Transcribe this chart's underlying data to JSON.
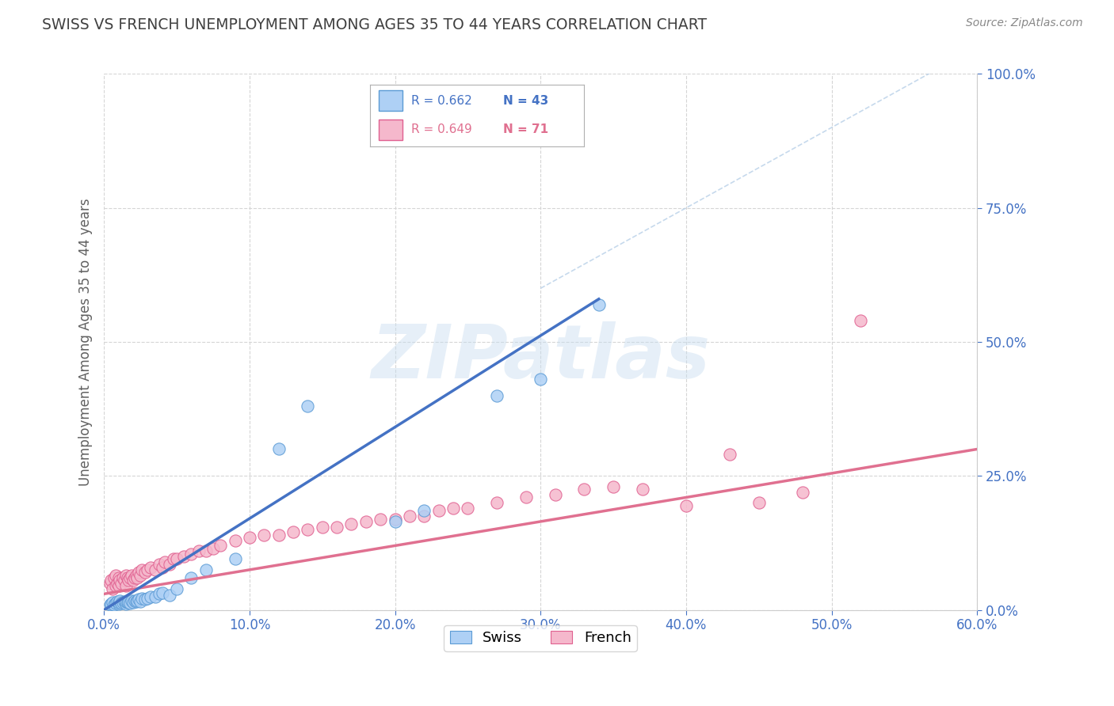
{
  "title": "SWISS VS FRENCH UNEMPLOYMENT AMONG AGES 35 TO 44 YEARS CORRELATION CHART",
  "source": "Source: ZipAtlas.com",
  "ylabel": "Unemployment Among Ages 35 to 44 years",
  "xlim": [
    0.0,
    0.6
  ],
  "ylim": [
    0.0,
    1.0
  ],
  "xticks": [
    0.0,
    0.1,
    0.2,
    0.3,
    0.4,
    0.5,
    0.6
  ],
  "yticks": [
    0.0,
    0.25,
    0.5,
    0.75,
    1.0
  ],
  "xticklabels": [
    "0.0%",
    "10.0%",
    "20.0%",
    "30.0%",
    "40.0%",
    "50.0%",
    "60.0%"
  ],
  "yticklabels": [
    "0.0%",
    "25.0%",
    "50.0%",
    "75.0%",
    "100.0%"
  ],
  "swiss_color": "#aed0f5",
  "french_color": "#f5b8cc",
  "swiss_edge_color": "#5b9bd5",
  "french_edge_color": "#e06090",
  "swiss_line_color": "#4472c4",
  "french_line_color": "#e07090",
  "ref_line_color": "#b8d0e8",
  "watermark_text": "ZIPatlas",
  "swiss_x": [
    0.004,
    0.005,
    0.006,
    0.007,
    0.008,
    0.009,
    0.01,
    0.01,
    0.011,
    0.012,
    0.013,
    0.014,
    0.015,
    0.015,
    0.016,
    0.017,
    0.018,
    0.019,
    0.02,
    0.021,
    0.022,
    0.023,
    0.024,
    0.025,
    0.026,
    0.028,
    0.03,
    0.032,
    0.035,
    0.038,
    0.04,
    0.045,
    0.05,
    0.06,
    0.07,
    0.09,
    0.12,
    0.14,
    0.2,
    0.22,
    0.27,
    0.3,
    0.34
  ],
  "swiss_y": [
    0.01,
    0.012,
    0.015,
    0.01,
    0.013,
    0.016,
    0.012,
    0.015,
    0.018,
    0.013,
    0.014,
    0.016,
    0.012,
    0.016,
    0.014,
    0.015,
    0.013,
    0.017,
    0.015,
    0.018,
    0.016,
    0.018,
    0.02,
    0.016,
    0.022,
    0.02,
    0.022,
    0.025,
    0.025,
    0.03,
    0.032,
    0.028,
    0.04,
    0.06,
    0.075,
    0.095,
    0.3,
    0.38,
    0.165,
    0.185,
    0.4,
    0.43,
    0.57
  ],
  "french_x": [
    0.004,
    0.005,
    0.006,
    0.007,
    0.008,
    0.008,
    0.009,
    0.01,
    0.01,
    0.011,
    0.012,
    0.013,
    0.014,
    0.015,
    0.015,
    0.016,
    0.017,
    0.018,
    0.019,
    0.02,
    0.021,
    0.022,
    0.023,
    0.024,
    0.025,
    0.026,
    0.028,
    0.03,
    0.032,
    0.035,
    0.038,
    0.04,
    0.042,
    0.045,
    0.048,
    0.05,
    0.055,
    0.06,
    0.065,
    0.07,
    0.075,
    0.08,
    0.09,
    0.1,
    0.11,
    0.12,
    0.13,
    0.14,
    0.15,
    0.16,
    0.17,
    0.18,
    0.19,
    0.2,
    0.21,
    0.22,
    0.23,
    0.24,
    0.25,
    0.27,
    0.29,
    0.31,
    0.33,
    0.35,
    0.37,
    0.4,
    0.43,
    0.45,
    0.48,
    0.52
  ],
  "french_y": [
    0.05,
    0.055,
    0.04,
    0.06,
    0.045,
    0.065,
    0.05,
    0.045,
    0.06,
    0.055,
    0.05,
    0.06,
    0.055,
    0.045,
    0.065,
    0.06,
    0.055,
    0.06,
    0.065,
    0.055,
    0.06,
    0.065,
    0.06,
    0.07,
    0.065,
    0.075,
    0.07,
    0.075,
    0.08,
    0.075,
    0.085,
    0.08,
    0.09,
    0.085,
    0.095,
    0.095,
    0.1,
    0.105,
    0.11,
    0.11,
    0.115,
    0.12,
    0.13,
    0.135,
    0.14,
    0.14,
    0.145,
    0.15,
    0.155,
    0.155,
    0.16,
    0.165,
    0.17,
    0.17,
    0.175,
    0.175,
    0.185,
    0.19,
    0.19,
    0.2,
    0.21,
    0.215,
    0.225,
    0.23,
    0.225,
    0.195,
    0.29,
    0.2,
    0.22,
    0.54
  ],
  "swiss_trend_x": [
    0.0,
    0.34
  ],
  "swiss_trend_y": [
    0.0,
    0.58
  ],
  "french_trend_x": [
    0.0,
    0.6
  ],
  "french_trend_y": [
    0.03,
    0.3
  ],
  "ref_line_x": [
    0.3,
    0.6
  ],
  "ref_line_y": [
    0.6,
    1.05
  ],
  "background_color": "#ffffff",
  "grid_color": "#d5d5d5",
  "tick_color": "#4472c4",
  "title_color": "#404040",
  "ylabel_color": "#606060"
}
